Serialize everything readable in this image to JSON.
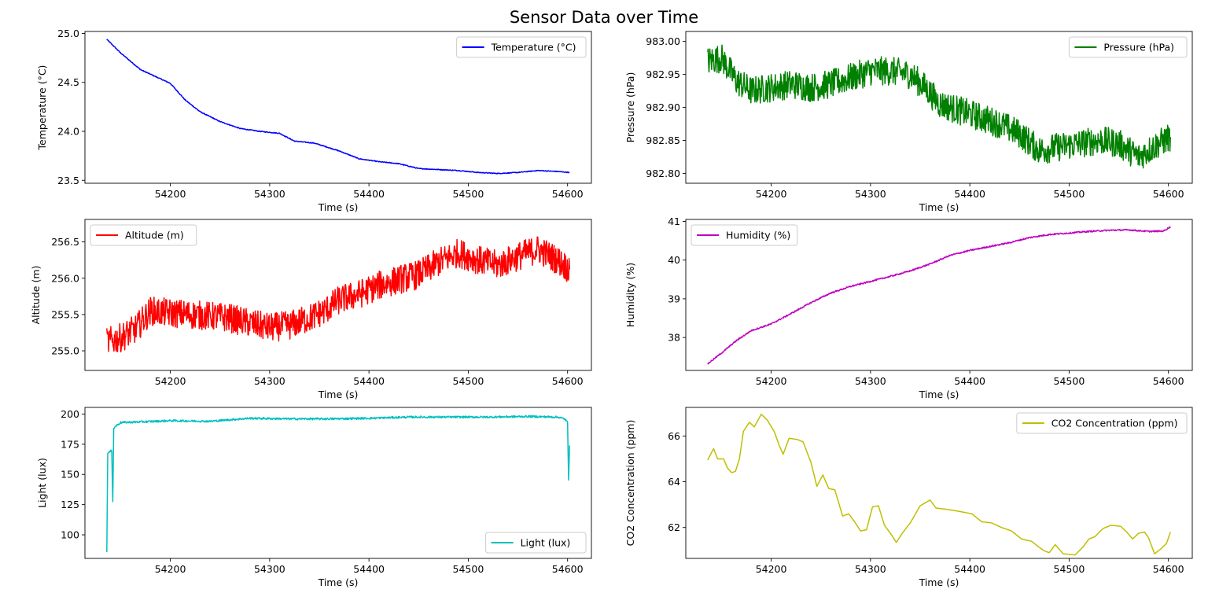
{
  "figure": {
    "title": "Sensor Data over Time"
  },
  "chart_data": [
    {
      "type": "line",
      "xlabel": "Time (s)",
      "ylabel": "Temperature (°C)",
      "xlim": [
        54114,
        54624
      ],
      "ylim": [
        23.47,
        25.02
      ],
      "xticks": [
        54200,
        54300,
        54400,
        54500,
        54600
      ],
      "yticks": [
        23.5,
        24.0,
        24.5,
        25.0
      ],
      "ytick_labels": [
        "23.5",
        "24.0",
        "24.5",
        "25.0"
      ],
      "legend_position": "top-right",
      "noise": 0.004,
      "series": [
        {
          "name": "Temperature (°C)",
          "color": "#0000ff",
          "x": [
            54136,
            54150,
            54170,
            54185,
            54200,
            54215,
            54230,
            54250,
            54270,
            54290,
            54310,
            54325,
            54345,
            54370,
            54390,
            54410,
            54430,
            54450,
            54470,
            54490,
            54510,
            54530,
            54550,
            54570,
            54590,
            54602
          ],
          "y": [
            24.94,
            24.8,
            24.63,
            24.56,
            24.49,
            24.32,
            24.2,
            24.1,
            24.03,
            24.0,
            23.98,
            23.9,
            23.88,
            23.8,
            23.72,
            23.69,
            23.67,
            23.62,
            23.61,
            23.6,
            23.58,
            23.57,
            23.58,
            23.6,
            23.59,
            23.58
          ]
        }
      ]
    },
    {
      "type": "line",
      "xlabel": "Time (s)",
      "ylabel": "Pressure (hPa)",
      "xlim": [
        54114,
        54624
      ],
      "ylim": [
        982.785,
        983.015
      ],
      "xticks": [
        54200,
        54300,
        54400,
        54500,
        54600
      ],
      "yticks": [
        982.8,
        982.85,
        982.9,
        982.95,
        983.0
      ],
      "ytick_labels": [
        "982.80",
        "982.85",
        "982.90",
        "982.95",
        "983.00"
      ],
      "legend_position": "top-right",
      "noise": 0.022,
      "series": [
        {
          "name": "Pressure (hPa)",
          "color": "#008000",
          "x": [
            54136,
            54150,
            54165,
            54180,
            54200,
            54220,
            54240,
            54260,
            54280,
            54300,
            54320,
            54340,
            54355,
            54370,
            54390,
            54410,
            54430,
            54450,
            54470,
            54490,
            54510,
            54530,
            54550,
            54570,
            54590,
            54602
          ],
          "y": [
            982.97,
            982.975,
            982.94,
            982.925,
            982.93,
            982.935,
            982.93,
            982.935,
            982.945,
            982.955,
            982.955,
            982.95,
            982.93,
            982.905,
            982.895,
            982.885,
            982.875,
            982.86,
            982.835,
            982.84,
            982.845,
            982.85,
            982.845,
            982.825,
            982.845,
            982.855
          ]
        }
      ]
    },
    {
      "type": "line",
      "xlabel": "Time (s)",
      "ylabel": "Altitude (m)",
      "xlim": [
        54114,
        54624
      ],
      "ylim": [
        254.73,
        256.81
      ],
      "xticks": [
        54200,
        54300,
        54400,
        54500,
        54600
      ],
      "yticks": [
        255.0,
        255.5,
        256.0,
        256.5
      ],
      "ytick_labels": [
        "255.0",
        "255.5",
        "256.0",
        "256.5"
      ],
      "legend_position": "top-left",
      "noise": 0.2,
      "series": [
        {
          "name": "Altitude (m)",
          "color": "#ff0000",
          "x": [
            54136,
            54150,
            54165,
            54180,
            54200,
            54220,
            54240,
            54260,
            54280,
            54300,
            54320,
            54340,
            54355,
            54370,
            54390,
            54410,
            54430,
            54450,
            54470,
            54490,
            54510,
            54530,
            54550,
            54570,
            54590,
            54602
          ],
          "y": [
            255.12,
            255.18,
            255.3,
            255.55,
            255.52,
            255.5,
            255.48,
            255.45,
            255.38,
            255.32,
            255.35,
            255.45,
            255.55,
            255.7,
            255.78,
            255.9,
            255.98,
            256.05,
            256.22,
            256.35,
            256.25,
            256.18,
            256.3,
            256.4,
            256.25,
            256.12
          ]
        }
      ]
    },
    {
      "type": "line",
      "xlabel": "Time (s)",
      "ylabel": "Humidity (%)",
      "xlim": [
        54114,
        54624
      ],
      "ylim": [
        37.15,
        41.05
      ],
      "xticks": [
        54200,
        54300,
        54400,
        54500,
        54600
      ],
      "yticks": [
        38,
        39,
        40,
        41
      ],
      "ytick_labels": [
        "38",
        "39",
        "40",
        "41"
      ],
      "legend_position": "top-left",
      "noise": 0.018,
      "series": [
        {
          "name": "Humidity (%)",
          "color": "#bf00bf",
          "x": [
            54136,
            54150,
            54165,
            54180,
            54200,
            54220,
            54240,
            54260,
            54280,
            54300,
            54320,
            54340,
            54360,
            54380,
            54400,
            54420,
            54440,
            54460,
            54480,
            54500,
            54520,
            54540,
            54560,
            54580,
            54595,
            54602
          ],
          "y": [
            37.32,
            37.6,
            37.92,
            38.18,
            38.35,
            38.62,
            38.9,
            39.15,
            39.32,
            39.45,
            39.58,
            39.72,
            39.9,
            40.12,
            40.25,
            40.35,
            40.45,
            40.58,
            40.66,
            40.7,
            40.74,
            40.77,
            40.78,
            40.74,
            40.75,
            40.86
          ]
        }
      ]
    },
    {
      "type": "line",
      "xlabel": "Time (s)",
      "ylabel": "Light (lux)",
      "xlim": [
        54114,
        54624
      ],
      "ylim": [
        80.5,
        205.5
      ],
      "xticks": [
        54200,
        54300,
        54400,
        54500,
        54600
      ],
      "yticks": [
        100,
        125,
        150,
        175,
        200
      ],
      "ytick_labels": [
        "100",
        "125",
        "150",
        "175",
        "200"
      ],
      "legend_position": "bottom-right",
      "noise": 0.8,
      "series": [
        {
          "name": "Light (lux)",
          "color": "#00bfbf",
          "x": [
            54136,
            54137,
            54138,
            54141,
            54142,
            54143,
            54145,
            54150,
            54170,
            54200,
            54240,
            54280,
            54320,
            54360,
            54400,
            54440,
            54480,
            54520,
            54560,
            54590,
            54597,
            54600,
            54601,
            54602
          ],
          "y": [
            86,
            168,
            168,
            170,
            128,
            188,
            190,
            193,
            193.5,
            194.5,
            194,
            196.5,
            196,
            196,
            196.5,
            197.5,
            197.5,
            197.5,
            198,
            197.5,
            196,
            193,
            146,
            174
          ]
        }
      ]
    },
    {
      "type": "line",
      "xlabel": "Time (s)",
      "ylabel": "CO2 Concentration (ppm)",
      "xlim": [
        54114,
        54624
      ],
      "ylim": [
        60.65,
        67.25
      ],
      "xticks": [
        54200,
        54300,
        54400,
        54500,
        54600
      ],
      "yticks": [
        62,
        64,
        66
      ],
      "ytick_labels": [
        "62",
        "64",
        "66"
      ],
      "legend_position": "top-right",
      "noise": 0,
      "series": [
        {
          "name": "CO2 Concentration (ppm)",
          "color": "#bfbf00",
          "x": [
            54136,
            54142,
            54146,
            54152,
            54156,
            54160,
            54164,
            54168,
            54172,
            54178,
            54183,
            54190,
            54196,
            54203,
            54208,
            54212,
            54218,
            54226,
            54232,
            54240,
            54246,
            54252,
            54258,
            54264,
            54272,
            54278,
            54284,
            54290,
            54296,
            54302,
            54308,
            54314,
            54320,
            54326,
            54332,
            54340,
            54350,
            54360,
            54366,
            54376,
            54390,
            54402,
            54412,
            54422,
            54432,
            54442,
            54452,
            54462,
            54468,
            54474,
            54480,
            54486,
            54494,
            54506,
            54514,
            54520,
            54526,
            54534,
            54542,
            54552,
            54558,
            54564,
            54570,
            54576,
            54580,
            54586,
            54592,
            54598,
            54602
          ],
          "y": [
            64.95,
            65.45,
            65.0,
            65.0,
            64.6,
            64.4,
            64.45,
            65.0,
            66.2,
            66.6,
            66.4,
            66.95,
            66.7,
            66.2,
            65.6,
            65.2,
            65.9,
            65.85,
            65.75,
            64.85,
            63.8,
            64.3,
            63.7,
            63.65,
            62.5,
            62.6,
            62.25,
            61.85,
            61.9,
            62.9,
            62.95,
            62.1,
            61.75,
            61.35,
            61.75,
            62.2,
            62.95,
            63.2,
            62.85,
            62.8,
            62.7,
            62.6,
            62.25,
            62.2,
            62.0,
            61.85,
            61.5,
            61.4,
            61.2,
            61.0,
            60.9,
            61.25,
            60.85,
            60.8,
            61.15,
            61.5,
            61.6,
            61.95,
            62.1,
            62.05,
            61.8,
            61.5,
            61.75,
            61.8,
            61.55,
            60.85,
            61.05,
            61.3,
            61.8
          ]
        }
      ]
    }
  ]
}
